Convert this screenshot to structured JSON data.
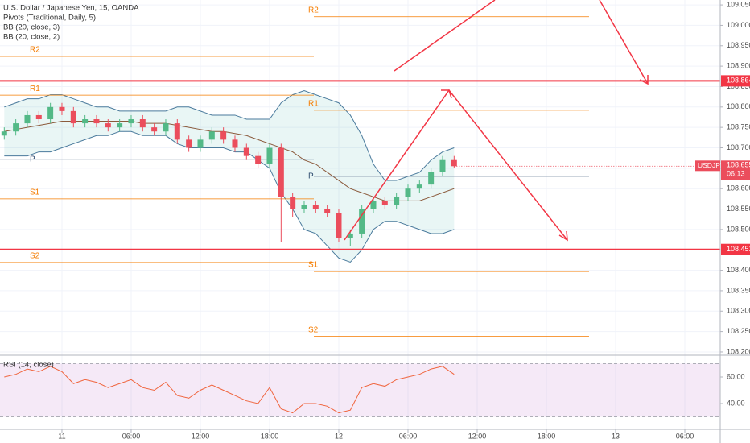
{
  "chart_data": [
    {
      "type": "candlestick",
      "title": "U.S. Dollar / Japanese Yen, 15, OANDA",
      "indicators": [
        "Pivots (Traditional, Daily, 5)",
        "BB (20, close, 3)",
        "BB (20, close, 2)"
      ],
      "x": [
        -5,
        -4,
        -3,
        -2,
        -1,
        0,
        1,
        2,
        3,
        4,
        5,
        6,
        7,
        8,
        9,
        10,
        11,
        12,
        13,
        14,
        15,
        16,
        17,
        18,
        19,
        20,
        21,
        22,
        23,
        24,
        25,
        26,
        27,
        28,
        29,
        30,
        31,
        32,
        33,
        34
      ],
      "open": [
        108.73,
        108.74,
        108.76,
        108.78,
        108.77,
        108.8,
        108.79,
        108.76,
        108.77,
        108.76,
        108.75,
        108.76,
        108.77,
        108.75,
        108.74,
        108.76,
        108.72,
        108.7,
        108.72,
        108.74,
        108.72,
        108.7,
        108.68,
        108.66,
        108.7,
        108.58,
        108.55,
        108.56,
        108.55,
        108.54,
        108.48,
        108.49,
        108.55,
        108.57,
        108.56,
        108.58,
        108.6,
        108.61,
        108.64,
        108.67
      ],
      "high": [
        108.75,
        108.77,
        108.79,
        108.79,
        108.81,
        108.81,
        108.8,
        108.78,
        108.78,
        108.77,
        108.77,
        108.78,
        108.78,
        108.76,
        108.77,
        108.77,
        108.73,
        108.73,
        108.75,
        108.75,
        108.73,
        108.71,
        108.69,
        108.71,
        108.71,
        108.59,
        108.57,
        108.57,
        108.56,
        108.55,
        108.5,
        108.56,
        108.58,
        108.58,
        108.59,
        108.61,
        108.62,
        108.65,
        108.68,
        108.68
      ],
      "low": [
        108.72,
        108.73,
        108.75,
        108.76,
        108.76,
        108.78,
        108.75,
        108.75,
        108.75,
        108.74,
        108.74,
        108.75,
        108.74,
        108.73,
        108.73,
        108.71,
        108.69,
        108.69,
        108.71,
        108.71,
        108.69,
        108.67,
        108.65,
        108.65,
        108.47,
        108.53,
        108.54,
        108.54,
        108.53,
        108.47,
        108.46,
        108.48,
        108.54,
        108.55,
        108.55,
        108.57,
        108.59,
        108.6,
        108.63,
        108.65
      ],
      "close": [
        108.74,
        108.76,
        108.78,
        108.77,
        108.8,
        108.79,
        108.76,
        108.77,
        108.76,
        108.75,
        108.76,
        108.77,
        108.75,
        108.74,
        108.76,
        108.72,
        108.7,
        108.72,
        108.74,
        108.72,
        108.7,
        108.68,
        108.66,
        108.7,
        108.58,
        108.55,
        108.56,
        108.55,
        108.54,
        108.48,
        108.49,
        108.55,
        108.57,
        108.56,
        108.58,
        108.6,
        108.61,
        108.64,
        108.67,
        108.655
      ],
      "up_color": "#53b987",
      "down_color": "#eb4d5c",
      "bands": {
        "upper": [
          108.8,
          108.81,
          108.82,
          108.82,
          108.83,
          108.83,
          108.82,
          108.81,
          108.8,
          108.8,
          108.79,
          108.79,
          108.79,
          108.79,
          108.79,
          108.8,
          108.8,
          108.79,
          108.78,
          108.78,
          108.78,
          108.77,
          108.77,
          108.77,
          108.81,
          108.83,
          108.84,
          108.83,
          108.82,
          108.81,
          108.78,
          108.73,
          108.66,
          108.62,
          108.62,
          108.63,
          108.64,
          108.67,
          108.69,
          108.7
        ],
        "middle": [
          108.74,
          108.745,
          108.75,
          108.755,
          108.76,
          108.765,
          108.765,
          108.765,
          108.765,
          108.765,
          108.765,
          108.765,
          108.76,
          108.76,
          108.76,
          108.755,
          108.75,
          108.745,
          108.74,
          108.74,
          108.735,
          108.73,
          108.72,
          108.71,
          108.7,
          108.69,
          108.67,
          108.66,
          108.64,
          108.62,
          108.6,
          108.59,
          108.58,
          108.57,
          108.57,
          108.57,
          108.57,
          108.58,
          108.59,
          108.6
        ],
        "lower": [
          108.68,
          108.68,
          108.68,
          108.69,
          108.69,
          108.7,
          108.71,
          108.72,
          108.73,
          108.73,
          108.74,
          108.74,
          108.73,
          108.73,
          108.73,
          108.71,
          108.7,
          108.7,
          108.7,
          108.7,
          108.69,
          108.69,
          108.67,
          108.65,
          108.59,
          108.55,
          108.5,
          108.49,
          108.46,
          108.43,
          108.42,
          108.45,
          108.5,
          108.52,
          108.52,
          108.51,
          108.5,
          108.49,
          108.49,
          108.5
        ]
      },
      "pivots": [
        {
          "name": "R2",
          "values": [
            108.924,
            109.021
          ]
        },
        {
          "name": "R1",
          "values": [
            108.829,
            108.792
          ]
        },
        {
          "name": "P",
          "values": [
            108.672,
            108.63
          ]
        },
        {
          "name": "S1",
          "values": [
            108.575,
            108.397
          ]
        },
        {
          "name": "S2",
          "values": [
            108.419,
            108.238
          ]
        }
      ],
      "horizontal_lines": [
        108.864,
        108.451
      ],
      "last_price": {
        "symbol": "USDJPY",
        "value": 108.655,
        "countdown": "06:13"
      },
      "xlim": [
        -5.37,
        57.07
      ],
      "xticks": [
        {
          "value": 0,
          "label": "11"
        },
        {
          "value": 6,
          "label": "06:00"
        },
        {
          "value": 12,
          "label": "12:00"
        },
        {
          "value": 18,
          "label": "18:00"
        },
        {
          "value": 24,
          "label": "12"
        },
        {
          "value": 30,
          "label": "06:00"
        },
        {
          "value": 36,
          "label": "12:00"
        },
        {
          "value": 42,
          "label": "18:00"
        },
        {
          "value": 48,
          "label": "13"
        },
        {
          "value": 54,
          "label": "06:00"
        }
      ],
      "ylim": [
        108.194,
        109.062
      ],
      "yticks": [
        {
          "value": 108.2,
          "label": "108.200"
        },
        {
          "value": 108.25,
          "label": "108.250"
        },
        {
          "value": 108.3,
          "label": "108.300"
        },
        {
          "value": 108.35,
          "label": "108.350"
        },
        {
          "value": 108.4,
          "label": "108.400"
        },
        {
          "value": 108.45,
          "label": "108.450"
        },
        {
          "value": 108.5,
          "label": "108.500"
        },
        {
          "value": 108.55,
          "label": "108.550"
        },
        {
          "value": 108.6,
          "label": "108.600"
        },
        {
          "value": 108.65,
          "label": "108.650"
        },
        {
          "value": 108.7,
          "label": "108.700"
        },
        {
          "value": 108.75,
          "label": "108.750"
        },
        {
          "value": 108.8,
          "label": "108.800"
        },
        {
          "value": 108.85,
          "label": "108.850"
        },
        {
          "value": 108.9,
          "label": "108.900"
        },
        {
          "value": 108.95,
          "label": "108.950"
        },
        {
          "value": 109.0,
          "label": "109.000"
        },
        {
          "value": 109.05,
          "label": "109.050"
        }
      ],
      "grid": true
    },
    {
      "type": "line",
      "title": "RSI (14, close)",
      "color": "#f0643c",
      "values": [
        60,
        62,
        66,
        64,
        68,
        64,
        55,
        58,
        56,
        52,
        55,
        58,
        52,
        50,
        56,
        46,
        44,
        50,
        54,
        50,
        46,
        42,
        40,
        52,
        36,
        33,
        40,
        40,
        38,
        33,
        35,
        52,
        55,
        53,
        58,
        60,
        62,
        66,
        68,
        62
      ],
      "band": [
        30,
        70
      ],
      "ylim": [
        21.2,
        75.76
      ],
      "yticks": [
        {
          "value": 60,
          "label": "60.00"
        },
        {
          "value": 40,
          "label": "40.00"
        }
      ]
    }
  ]
}
